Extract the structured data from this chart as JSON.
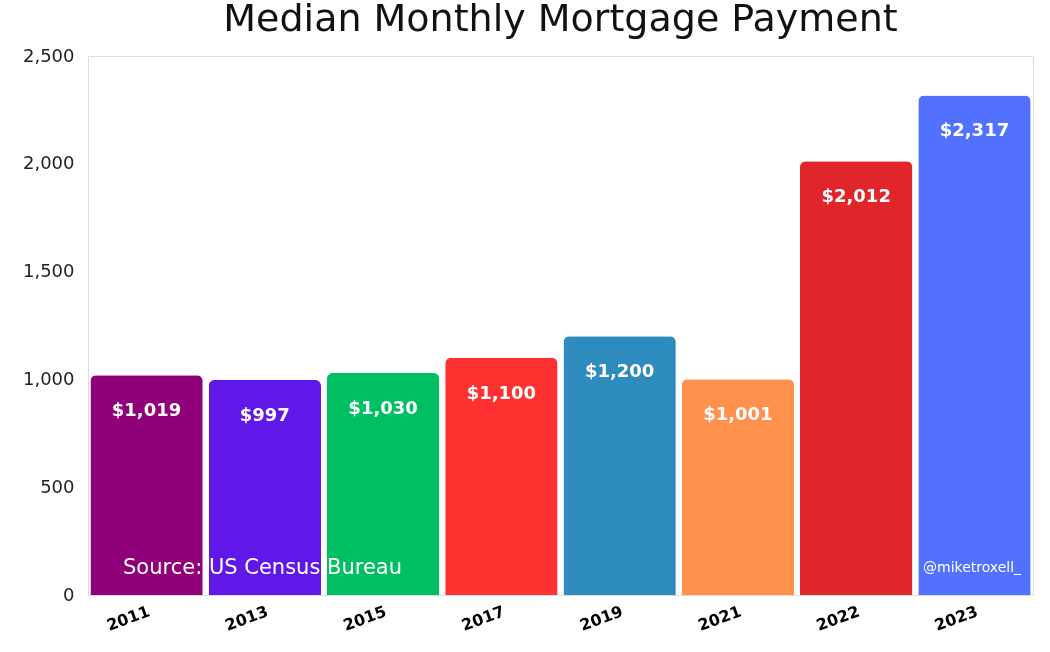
{
  "chart_data": {
    "type": "bar",
    "title": "Median Monthly Mortgage Payment",
    "categories": [
      "2011",
      "2013",
      "2015",
      "2017",
      "2019",
      "2021",
      "2022",
      "2023"
    ],
    "values": [
      1019,
      997,
      1030,
      1100,
      1200,
      1001,
      2012,
      2317
    ],
    "value_labels": [
      "$1,019",
      "$997",
      "$1,030",
      "$1,100",
      "$1,200",
      "$1,001",
      "$2,012",
      "$2,317"
    ],
    "colors": [
      "#900078",
      "#6018e8",
      "#00bf63",
      "#ff3131",
      "#2e8bbd",
      "#ff914d",
      "#e0262b",
      "#5271ff"
    ],
    "ylim": [
      0,
      2500
    ],
    "yticks": [
      0,
      {
        "value": 500,
        "label": "500"
      },
      {
        "value": 1000,
        "label": "1,000"
      },
      {
        "value": 1500,
        "label": "1,500"
      },
      {
        "value": 2000,
        "label": "2,000"
      },
      {
        "value": 2500,
        "label": "2,500"
      }
    ],
    "grid": false,
    "annotations": [
      "Source: US Census Bureau",
      "@miketroxell_"
    ]
  }
}
